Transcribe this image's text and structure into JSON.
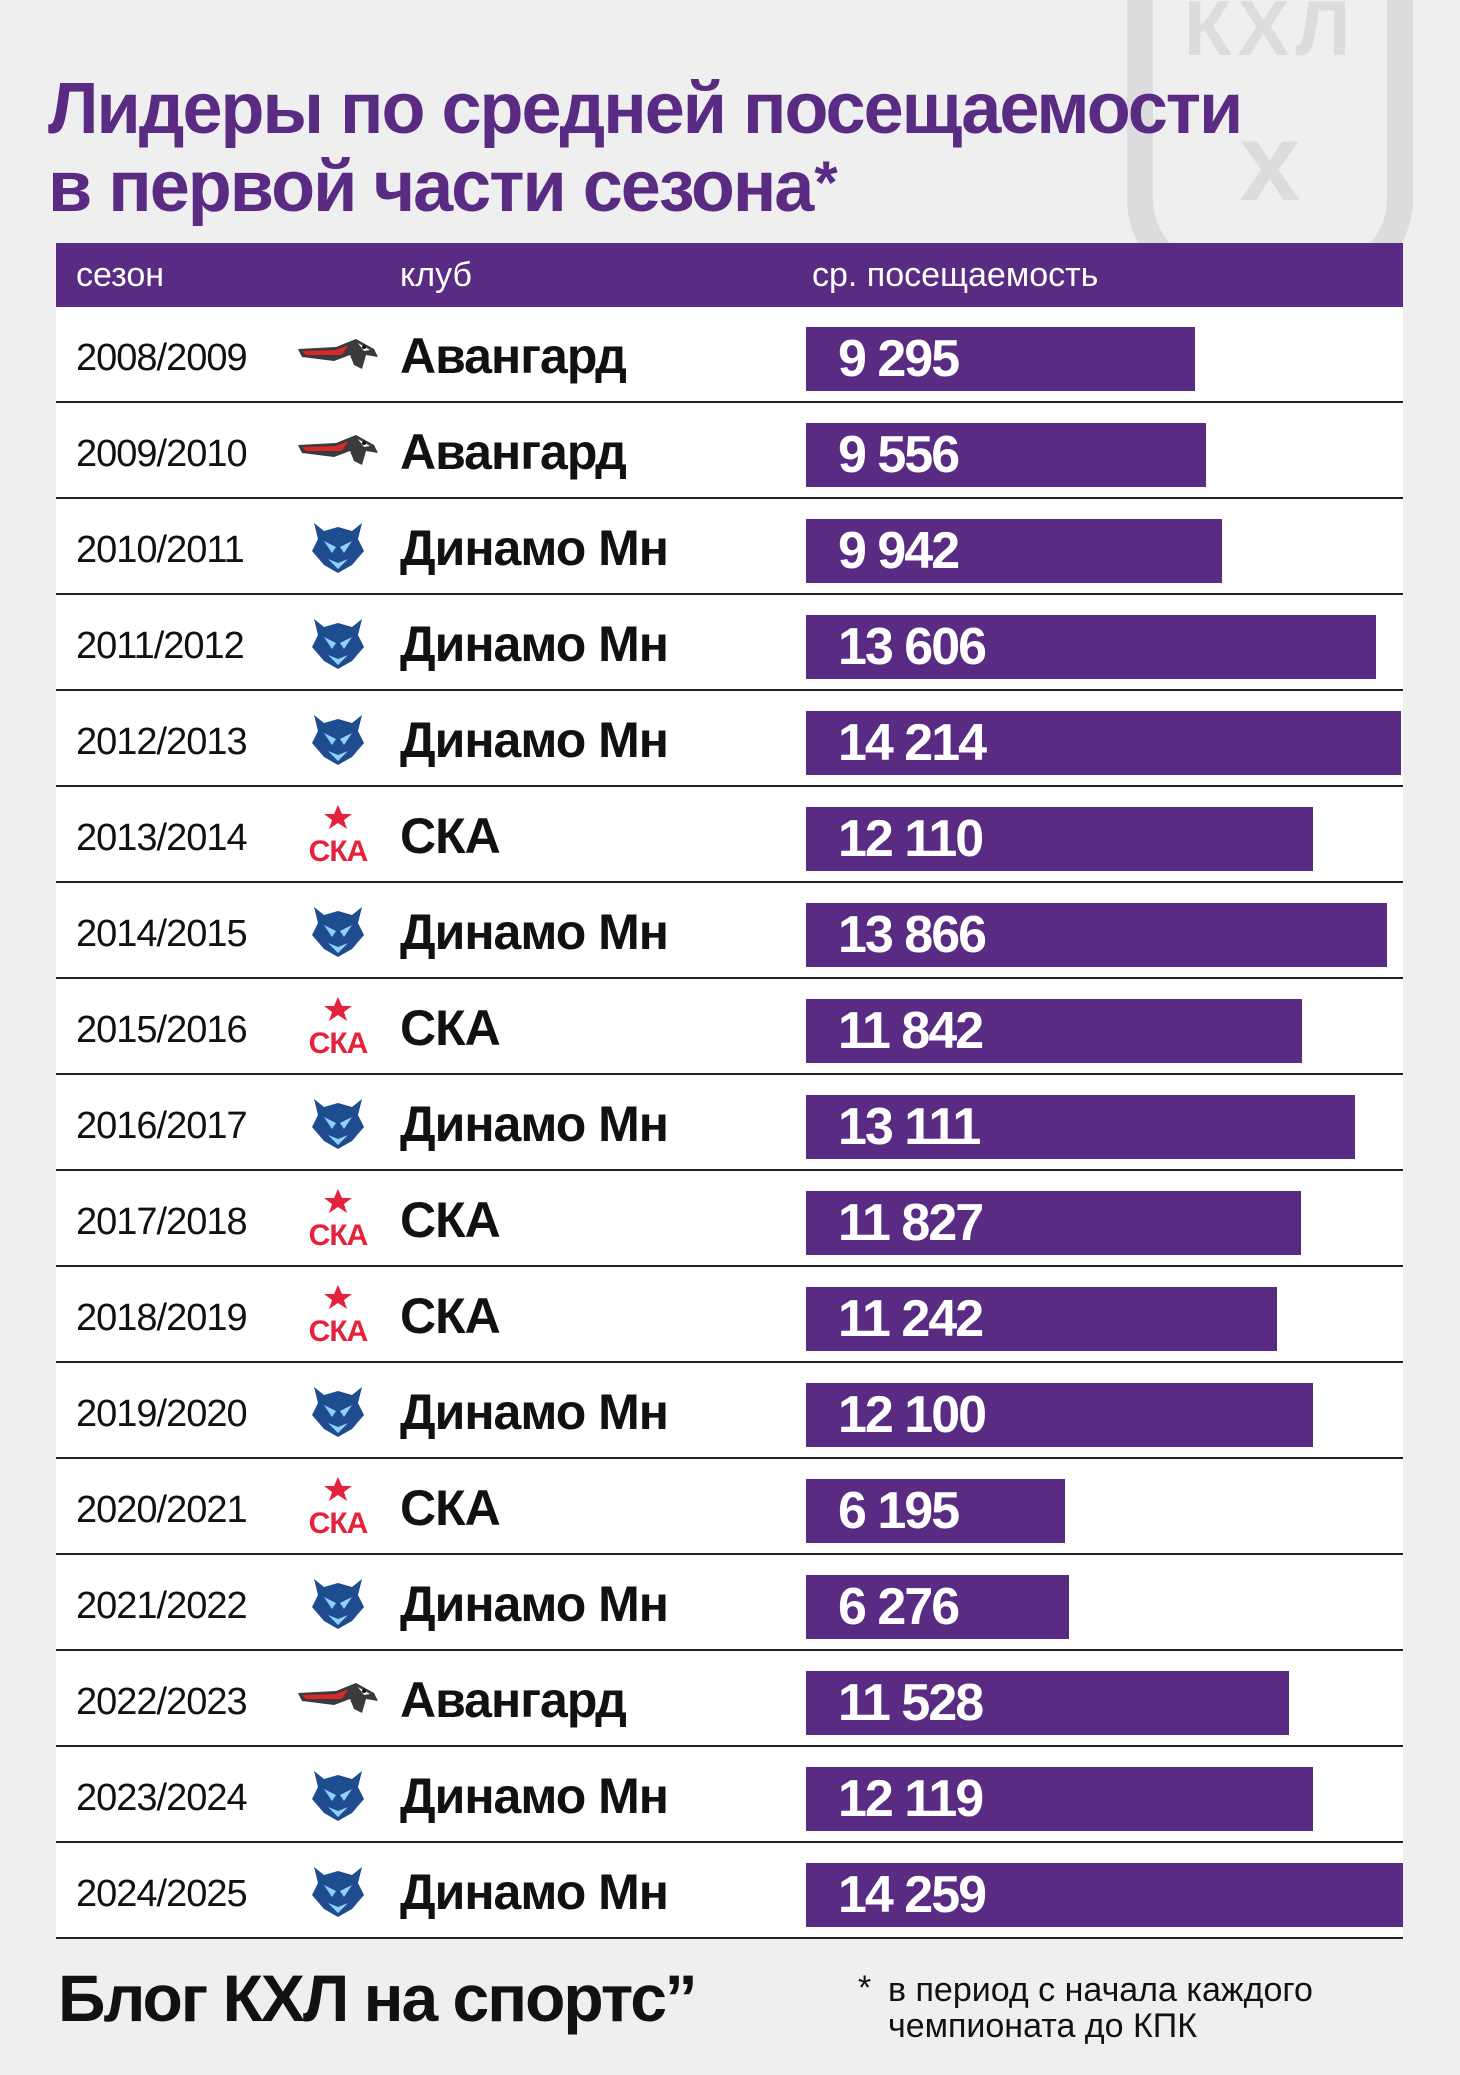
{
  "title": {
    "line1": "Лидеры по средней посещаемости",
    "line2": "в первой части сезона",
    "star": "*"
  },
  "watermark": {
    "text": "КХЛ"
  },
  "chart_data": {
    "type": "bar",
    "orientation": "horizontal",
    "title": "Лидеры по средней посещаемости в первой части сезона*",
    "columns": [
      "сезон",
      "клуб",
      "ср. посещаемость"
    ],
    "rows": [
      {
        "season": "2008/2009",
        "club": "Авангард",
        "logo": "avangard-logo",
        "value": 9295,
        "label": "9 295"
      },
      {
        "season": "2009/2010",
        "club": "Авангард",
        "logo": "avangard-logo",
        "value": 9556,
        "label": "9 556"
      },
      {
        "season": "2010/2011",
        "club": "Динамо Мн",
        "logo": "dinamo-mn-logo",
        "value": 9942,
        "label": "9 942"
      },
      {
        "season": "2011/2012",
        "club": "Динамо Мн",
        "logo": "dinamo-mn-logo",
        "value": 13606,
        "label": "13 606"
      },
      {
        "season": "2012/2013",
        "club": "Динамо Мн",
        "logo": "dinamo-mn-logo",
        "value": 14214,
        "label": "14 214"
      },
      {
        "season": "2013/2014",
        "club": "СКА",
        "logo": "ska-logo",
        "value": 12110,
        "label": "12 110"
      },
      {
        "season": "2014/2015",
        "club": "Динамо Мн",
        "logo": "dinamo-mn-logo",
        "value": 13866,
        "label": "13 866"
      },
      {
        "season": "2015/2016",
        "club": "СКА",
        "logo": "ska-logo",
        "value": 11842,
        "label": "11 842"
      },
      {
        "season": "2016/2017",
        "club": "Динамо Мн",
        "logo": "dinamo-mn-logo",
        "value": 13111,
        "label": "13 111"
      },
      {
        "season": "2017/2018",
        "club": "СКА",
        "logo": "ska-logo",
        "value": 11827,
        "label": "11 827"
      },
      {
        "season": "2018/2019",
        "club": "СКА",
        "logo": "ska-logo",
        "value": 11242,
        "label": "11 242"
      },
      {
        "season": "2019/2020",
        "club": "Динамо Мн",
        "logo": "dinamo-mn-logo",
        "value": 12100,
        "label": "12 100"
      },
      {
        "season": "2020/2021",
        "club": "СКА",
        "logo": "ska-logo",
        "value": 6195,
        "label": "6 195"
      },
      {
        "season": "2021/2022",
        "club": "Динамо Мн",
        "logo": "dinamo-mn-logo",
        "value": 6276,
        "label": "6 276"
      },
      {
        "season": "2022/2023",
        "club": "Авангард",
        "logo": "avangard-logo",
        "value": 11528,
        "label": "11 528"
      },
      {
        "season": "2023/2024",
        "club": "Динамо Мн",
        "logo": "dinamo-mn-logo",
        "value": 12119,
        "label": "12 119"
      },
      {
        "season": "2024/2025",
        "club": "Динамо Мн",
        "logo": "dinamo-mn-logo",
        "value": 14259,
        "label": "14 259"
      }
    ],
    "xlim": [
      0,
      14259
    ]
  },
  "footer": {
    "brand": "Блог КХЛ на спортс’’",
    "footnote_star": "*",
    "footnote": "в период с начала каждого чемпионата до КПК"
  },
  "colors": {
    "accent": "#5a2b82",
    "background": "#efeff0",
    "ska_red": "#e4233a",
    "dinamo_blue": "#1f4b8f"
  }
}
